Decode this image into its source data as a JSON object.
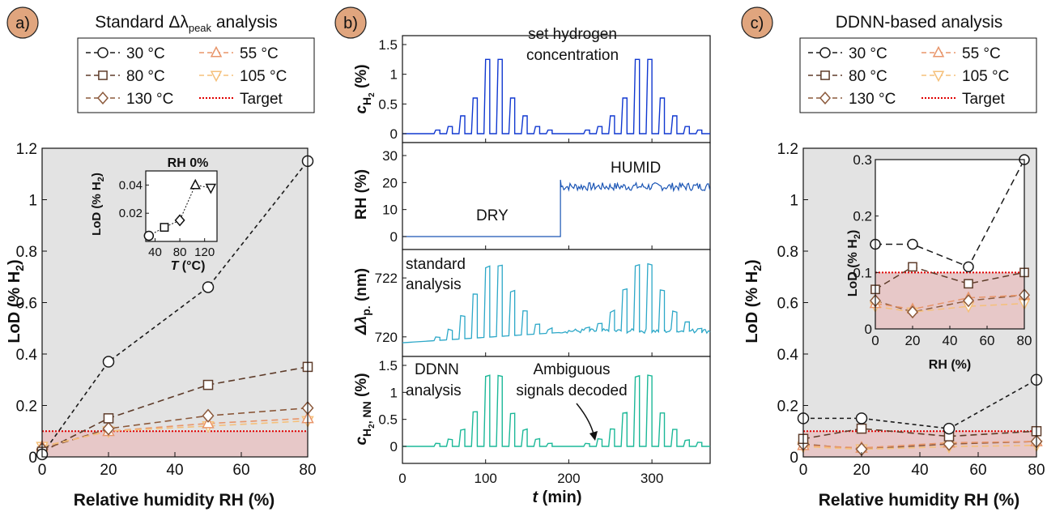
{
  "colors": {
    "badge": "#e0a57e",
    "c30": "#1a1a1a",
    "c55": "#5e3c2a",
    "c80": "#8c5a3c",
    "c105": "#e8956a",
    "c130": "#f5c07a",
    "target": "#e00000",
    "grayBg": "#e3e3e3",
    "pinkBg": "#e7c8c8",
    "blueLine": "#1038d0",
    "blueLine2": "#1a55b5",
    "tealLine": "#2da8c8",
    "greenLine": "#1cb898"
  },
  "panel_a": {
    "badge": "a)",
    "title_prefix": "Standard Δλ",
    "title_sub": "peak",
    "title_suffix": " analysis",
    "legend": [
      "30 °C",
      "105 °C",
      "55 °C",
      "130 °C",
      "80 °C",
      "Target"
    ],
    "xlabel": "Relative humidity RH (%)",
    "ylabel": "LoD (% H",
    "ylabel_sub": "2",
    "ylabel_end": ")",
    "xticks": [
      "0",
      "20",
      "40",
      "60",
      "80"
    ],
    "yticks": [
      "0",
      "0.2",
      "0.4",
      "0.6",
      "0.8",
      "1",
      "1.2"
    ],
    "inset": {
      "title": "RH 0%",
      "ylabel": "LoD (% H",
      "ylabel_sub": "2",
      "ylabel_end": ")",
      "xlabel_T": "T",
      "xlabel_unit": " (°C)",
      "xticks": [
        "40",
        "80",
        "120"
      ],
      "yticks": [
        "0.02",
        "0.04"
      ]
    }
  },
  "panel_b": {
    "badge": "b)",
    "xlabel_t": "t",
    "xlabel_unit": " (min)",
    "xticks": [
      "0",
      "100",
      "200",
      "300"
    ],
    "sub1": {
      "ylabel": "c",
      "ylabel_sub": "H",
      "ylabel_sub2": "2",
      "ylabel_end": " (%)",
      "yticks": [
        "0",
        "0.5",
        "1",
        "1.5"
      ],
      "annot1": "set hydrogen",
      "annot2": "concentration"
    },
    "sub2": {
      "ylabel": "RH (%)",
      "yticks": [
        "0",
        "10",
        "20",
        "30"
      ],
      "dry": "DRY",
      "humid": "HUMID"
    },
    "sub3": {
      "ylabel_delta": "Δλ",
      "ylabel_sub": "p.",
      "ylabel_end": " (nm)",
      "yticks": [
        "720",
        "722"
      ],
      "annot1": "standard",
      "annot2": "analysis"
    },
    "sub4": {
      "ylabel": "c",
      "ylabel_sub": "H",
      "ylabel_sub2": "2",
      "ylabel_nn": ", NN",
      "ylabel_end": " (%)",
      "yticks": [
        "0",
        "0.5",
        "1",
        "1.5"
      ],
      "annot1": "DDNN",
      "annot2": "analysis",
      "annot3": "Ambiguous",
      "annot4": "signals decoded"
    }
  },
  "panel_c": {
    "badge": "c)",
    "title": "DDNN-based analysis",
    "legend": [
      "30 °C",
      "105 °C",
      "55 °C",
      "130 °C",
      "80 °C",
      "Target"
    ],
    "xlabel": "Relative humidity RH (%)",
    "ylabel": "LoD (% H",
    "ylabel_sub": "2",
    "ylabel_end": ")",
    "xticks": [
      "0",
      "20",
      "40",
      "60",
      "80"
    ],
    "yticks": [
      "0",
      "0.2",
      "0.4",
      "0.6",
      "0.8",
      "1",
      "1.2"
    ],
    "inset": {
      "ylabel": "LoD (% H",
      "ylabel_sub": "2",
      "ylabel_end": ")",
      "xlabel": "RH (%)",
      "xticks": [
        "0",
        "20",
        "40",
        "60",
        "80"
      ],
      "yticks": [
        "0",
        "0.1",
        "0.2",
        "0.3"
      ]
    }
  },
  "chart_data": [
    {
      "type": "line",
      "title": "Standard Δλpeak analysis",
      "xlabel": "Relative humidity RH (%)",
      "ylabel": "LoD (% H2)",
      "xlim": [
        0,
        80
      ],
      "ylim": [
        0,
        1.2
      ],
      "x": [
        0,
        20,
        50,
        80
      ],
      "target": 0.1,
      "series": [
        {
          "name": "30 °C",
          "marker": "circle",
          "values": [
            0.01,
            0.37,
            0.66,
            1.15
          ]
        },
        {
          "name": "55 °C",
          "marker": "square",
          "values": [
            0.02,
            0.15,
            0.28,
            0.35
          ]
        },
        {
          "name": "80 °C",
          "marker": "diamond",
          "values": [
            0.03,
            0.11,
            0.16,
            0.19
          ]
        },
        {
          "name": "105 °C",
          "marker": "triangle-up",
          "values": [
            0.04,
            0.1,
            0.13,
            0.15
          ]
        },
        {
          "name": "130 °C",
          "marker": "triangle-down",
          "values": [
            0.04,
            0.1,
            0.12,
            0.14
          ]
        }
      ],
      "inset": {
        "title": "RH 0%",
        "xlabel": "T (°C)",
        "ylabel": "LoD (% H2)",
        "x": [
          30,
          55,
          80,
          105,
          130
        ],
        "values": [
          0.004,
          0.01,
          0.015,
          0.04,
          0.038
        ],
        "xlim": [
          25,
          140
        ],
        "ylim": [
          0,
          0.05
        ]
      }
    },
    {
      "type": "line",
      "xlabel": "t (min)",
      "xlim": [
        0,
        370
      ],
      "subplots": [
        {
          "ylabel": "cH2 (%)",
          "ylim": [
            0,
            1.5
          ],
          "pulse_times": [
            40,
            55,
            70,
            85,
            100,
            115,
            130,
            145,
            160,
            175,
            220,
            235,
            250,
            265,
            280,
            295,
            310,
            325,
            340,
            355
          ],
          "pulse_values": [
            0.06,
            0.12,
            0.3,
            0.6,
            1.25,
            1.25,
            0.6,
            0.3,
            0.12,
            0.06,
            0.06,
            0.12,
            0.3,
            0.6,
            1.25,
            1.25,
            0.6,
            0.3,
            0.12,
            0.06
          ]
        },
        {
          "ylabel": "RH (%)",
          "ylim": [
            0,
            30
          ],
          "segments": [
            {
              "t": [
                0,
                190
              ],
              "value": 0
            },
            {
              "t": [
                190,
                370
              ],
              "value": 19
            }
          ]
        },
        {
          "ylabel": "Δλp. (nm)",
          "ylim": [
            719.5,
            722.8
          ],
          "baseline": 719.8
        },
        {
          "ylabel": "cH2, NN (%)",
          "ylim": [
            0,
            1.5
          ]
        }
      ]
    },
    {
      "type": "line",
      "title": "DDNN-based analysis",
      "xlabel": "Relative humidity RH (%)",
      "ylabel": "LoD (% H2)",
      "xlim": [
        0,
        80
      ],
      "ylim": [
        0,
        1.2
      ],
      "x": [
        0,
        20,
        50,
        80
      ],
      "target": 0.1,
      "series": [
        {
          "name": "30 °C",
          "marker": "circle",
          "values": [
            0.15,
            0.15,
            0.11,
            0.3
          ]
        },
        {
          "name": "55 °C",
          "marker": "square",
          "values": [
            0.07,
            0.11,
            0.08,
            0.1
          ]
        },
        {
          "name": "80 °C",
          "marker": "diamond",
          "values": [
            0.05,
            0.03,
            0.05,
            0.06
          ]
        },
        {
          "name": "105 °C",
          "marker": "triangle-up",
          "values": [
            0.045,
            0.035,
            0.055,
            0.06
          ]
        },
        {
          "name": "130 °C",
          "marker": "triangle-down",
          "values": [
            0.04,
            0.03,
            0.04,
            0.045
          ]
        }
      ],
      "inset": {
        "xlabel": "RH (%)",
        "ylabel": "LoD (% H2)",
        "xlim": [
          0,
          80
        ],
        "ylim": [
          0,
          0.3
        ]
      }
    }
  ]
}
